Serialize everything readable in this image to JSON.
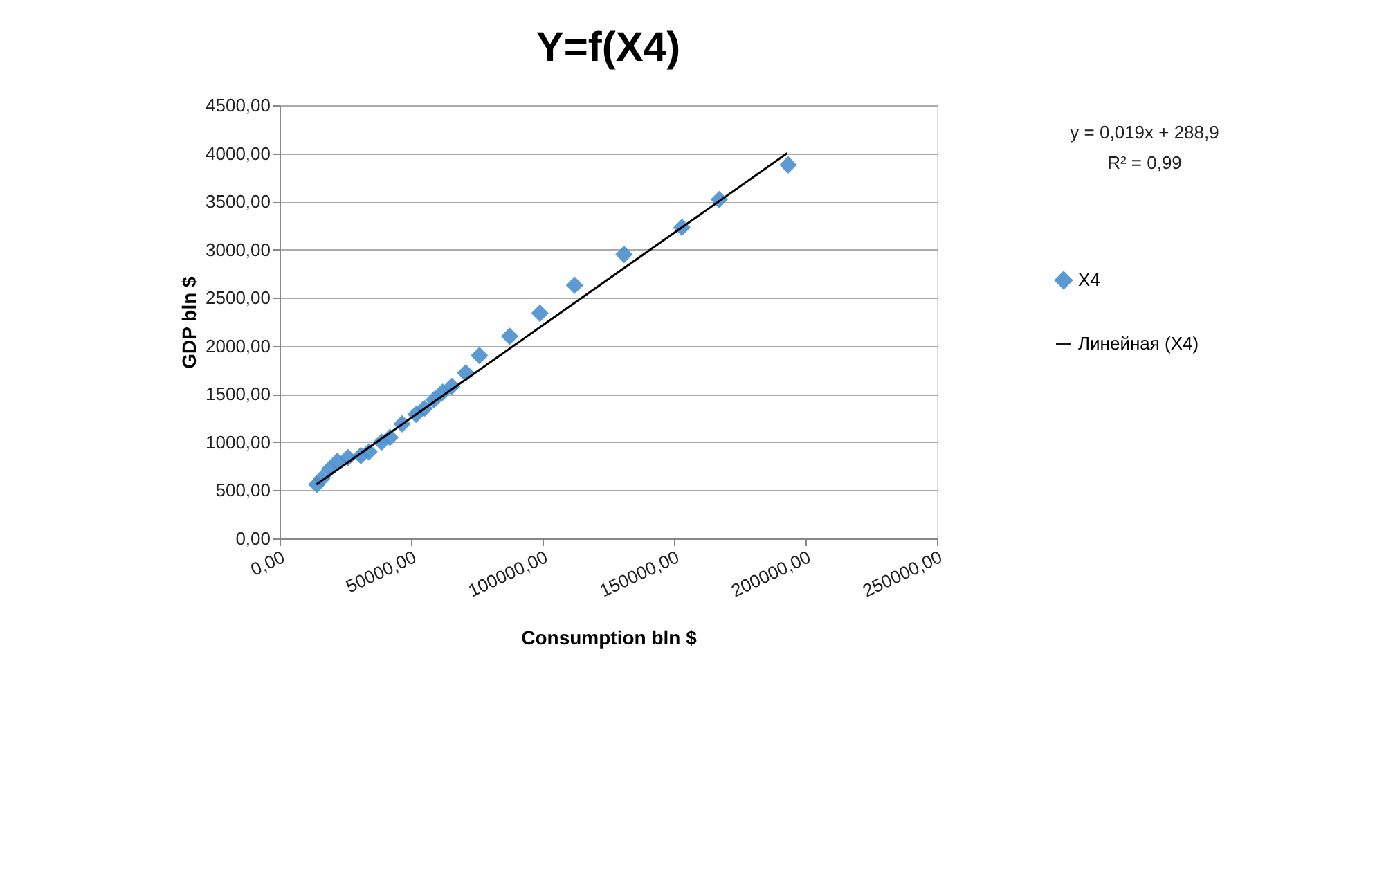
{
  "chart_data": {
    "type": "scatter",
    "title": "Y=f(X4)",
    "xlabel": "Consumption bln $",
    "ylabel": "GDP bln $",
    "x": [
      14150,
      16000,
      19000,
      22000,
      26000,
      30900,
      34000,
      38800,
      42000,
      46600,
      51900,
      55000,
      58700,
      62000,
      65500,
      70800,
      76000,
      87500,
      99000,
      112200,
      131000,
      153000,
      167200,
      193400
    ],
    "series": [
      {
        "name": "X4",
        "color": "#4a8fcf",
        "marker": "diamond",
        "values": [
          560,
          620,
          720,
          800,
          840,
          860,
          900,
          1000,
          1050,
          1190,
          1290,
          1350,
          1440,
          1520,
          1580,
          1720,
          1900,
          2100,
          2340,
          2630,
          2950,
          3230,
          3520,
          3880
        ]
      },
      {
        "name": "Линейная (X4)",
        "type": "line",
        "color": "#000000",
        "x": [
          14000,
          193000
        ],
        "values": [
          560,
          4000
        ]
      }
    ],
    "xlim": [
      0,
      250000
    ],
    "xticks": [
      {
        "value": 0,
        "label": "0,00"
      },
      {
        "value": 50000,
        "label": "50000,00"
      },
      {
        "value": 100000,
        "label": "100000,00"
      },
      {
        "value": 150000,
        "label": "150000,00"
      },
      {
        "value": 200000,
        "label": "200000,00"
      },
      {
        "value": 250000,
        "label": "250000,00"
      }
    ],
    "ylim": [
      0,
      4500
    ],
    "yticks": [
      {
        "value": 0,
        "label": "0,00"
      },
      {
        "value": 500,
        "label": "500,00"
      },
      {
        "value": 1000,
        "label": "1000,00"
      },
      {
        "value": 1500,
        "label": "1500,00"
      },
      {
        "value": 2000,
        "label": "2000,00"
      },
      {
        "value": 2500,
        "label": "2500,00"
      },
      {
        "value": 3000,
        "label": "3000,00"
      },
      {
        "value": 3500,
        "label": "3500,00"
      },
      {
        "value": 4000,
        "label": "4000,00"
      },
      {
        "value": 4500,
        "label": "4500,00"
      }
    ],
    "grid": "y",
    "legend": "right",
    "annotations": [
      "y = 0,019x + 288,9",
      "R² = 0,99"
    ]
  }
}
